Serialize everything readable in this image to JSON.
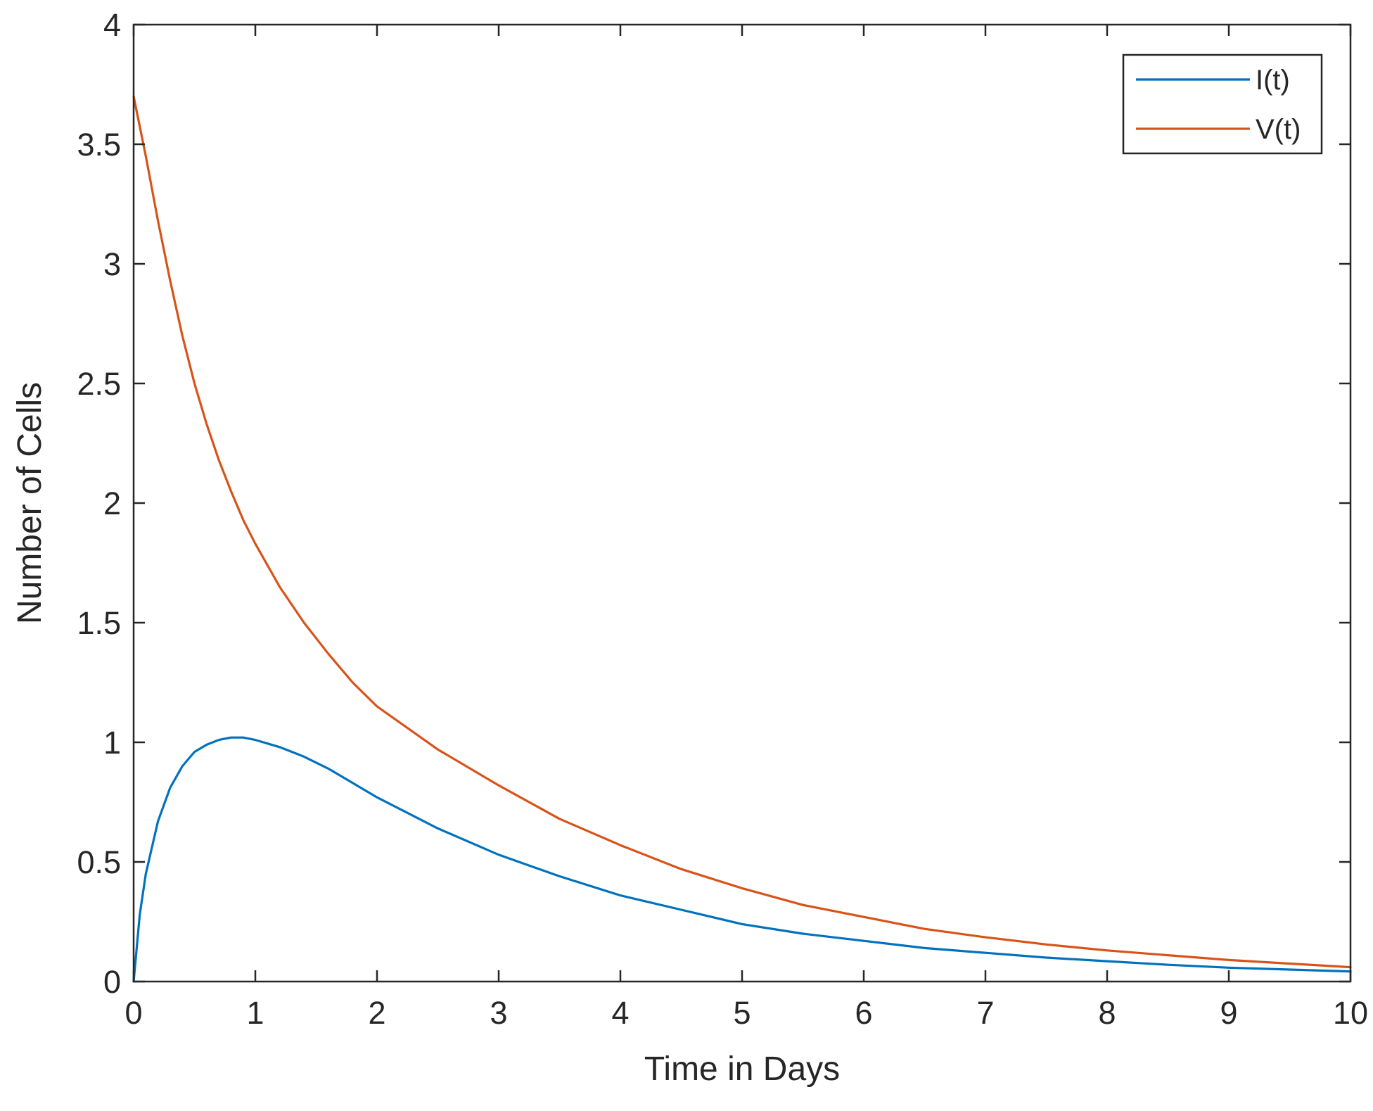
{
  "chart_data": {
    "type": "line",
    "title": "",
    "xlabel": "Time in Days",
    "ylabel": "Number of Cells",
    "xlim": [
      0,
      10
    ],
    "ylim": [
      0,
      4
    ],
    "xticks": [
      0,
      1,
      2,
      3,
      4,
      5,
      6,
      7,
      8,
      9,
      10
    ],
    "yticks": [
      0,
      0.5,
      1,
      1.5,
      2,
      2.5,
      3,
      3.5,
      4
    ],
    "xtick_labels": [
      "0",
      "1",
      "2",
      "3",
      "4",
      "5",
      "6",
      "7",
      "8",
      "9",
      "10"
    ],
    "ytick_labels": [
      "0",
      "0.5",
      "1",
      "1.5",
      "2",
      "2.5",
      "3",
      "3.5",
      "4"
    ],
    "grid": false,
    "legend_position": "top-right",
    "series": [
      {
        "name": "I(t)",
        "color": "#0072BD",
        "x": [
          0,
          0.05,
          0.1,
          0.2,
          0.3,
          0.4,
          0.5,
          0.6,
          0.7,
          0.8,
          0.9,
          1.0,
          1.2,
          1.4,
          1.6,
          1.8,
          2.0,
          2.5,
          3.0,
          3.5,
          4.0,
          4.5,
          5.0,
          5.5,
          6.0,
          6.5,
          7.0,
          7.5,
          8.0,
          8.5,
          9.0,
          9.5,
          10.0
        ],
        "values": [
          0,
          0.28,
          0.45,
          0.67,
          0.81,
          0.9,
          0.96,
          0.99,
          1.01,
          1.02,
          1.02,
          1.01,
          0.98,
          0.94,
          0.89,
          0.83,
          0.77,
          0.64,
          0.53,
          0.44,
          0.36,
          0.3,
          0.24,
          0.2,
          0.17,
          0.14,
          0.12,
          0.1,
          0.085,
          0.07,
          0.058,
          0.05,
          0.042
        ]
      },
      {
        "name": "V(t)",
        "color": "#D95319",
        "x": [
          0,
          0.1,
          0.2,
          0.3,
          0.4,
          0.5,
          0.6,
          0.7,
          0.8,
          0.9,
          1.0,
          1.2,
          1.4,
          1.6,
          1.8,
          2.0,
          2.5,
          3.0,
          3.5,
          4.0,
          4.5,
          5.0,
          5.5,
          6.0,
          6.5,
          7.0,
          7.5,
          8.0,
          8.5,
          9.0,
          9.5,
          10.0
        ],
        "values": [
          3.7,
          3.45,
          3.18,
          2.93,
          2.7,
          2.5,
          2.33,
          2.18,
          2.05,
          1.93,
          1.83,
          1.65,
          1.5,
          1.37,
          1.25,
          1.15,
          0.97,
          0.82,
          0.68,
          0.57,
          0.47,
          0.39,
          0.32,
          0.27,
          0.22,
          0.185,
          0.155,
          0.13,
          0.11,
          0.09,
          0.075,
          0.06
        ]
      }
    ]
  }
}
